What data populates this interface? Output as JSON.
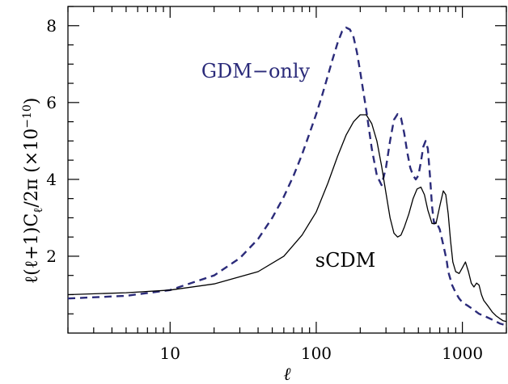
{
  "chart_data": {
    "type": "line",
    "xscale": "log",
    "xlim": [
      2,
      2000
    ],
    "ylim": [
      0,
      8.5
    ],
    "x_ticks": [
      10,
      100,
      1000
    ],
    "x_tick_labels": [
      "10",
      "100",
      "1000"
    ],
    "y_ticks": [
      2,
      4,
      6,
      8
    ],
    "y_tick_labels": [
      "2",
      "4",
      "6",
      "8"
    ],
    "xlabel": "ℓ",
    "ylabel": "ℓ(ℓ+1)C",
    "ylabel_sub": "ℓ",
    "ylabel_tail": "/2π  (×10",
    "ylabel_exp": "−10",
    "ylabel_close": ")",
    "grid": false,
    "series": [
      {
        "name": "GDM−only",
        "color": "#2b2b7a",
        "style": "dashed",
        "x": [
          2,
          5,
          10,
          20,
          30,
          40,
          50,
          60,
          70,
          80,
          90,
          100,
          110,
          120,
          130,
          140,
          150,
          160,
          170,
          180,
          190,
          200,
          220,
          240,
          260,
          280,
          300,
          320,
          340,
          360,
          380,
          400,
          420,
          440,
          460,
          480,
          500,
          520,
          540,
          560,
          580,
          600,
          620,
          640,
          660,
          700,
          750,
          780,
          800,
          850,
          900,
          950,
          1000,
          1050,
          1100,
          1150,
          1200,
          1300,
          1400,
          1500,
          1600,
          1700,
          1800,
          2000
        ],
        "y": [
          0.9,
          0.97,
          1.12,
          1.5,
          1.95,
          2.45,
          3.0,
          3.55,
          4.1,
          4.65,
          5.2,
          5.7,
          6.2,
          6.7,
          7.15,
          7.55,
          7.85,
          7.95,
          7.9,
          7.7,
          7.3,
          6.8,
          5.8,
          4.8,
          4.1,
          3.85,
          4.3,
          5.0,
          5.55,
          5.7,
          5.6,
          5.2,
          4.7,
          4.3,
          4.1,
          4.0,
          4.1,
          4.45,
          4.85,
          5.0,
          4.8,
          4.1,
          3.3,
          2.85,
          2.9,
          2.7,
          2.2,
          1.9,
          1.6,
          1.25,
          1.05,
          0.9,
          0.8,
          0.75,
          0.7,
          0.65,
          0.6,
          0.5,
          0.45,
          0.4,
          0.35,
          0.3,
          0.25,
          0.2
        ]
      },
      {
        "name": "sCDM",
        "color": "#000000",
        "style": "solid",
        "x": [
          2,
          5,
          10,
          20,
          40,
          60,
          80,
          100,
          120,
          140,
          160,
          180,
          200,
          220,
          240,
          260,
          280,
          300,
          320,
          340,
          360,
          380,
          400,
          430,
          460,
          490,
          520,
          550,
          580,
          620,
          660,
          700,
          740,
          770,
          800,
          830,
          860,
          900,
          950,
          1000,
          1050,
          1100,
          1150,
          1200,
          1250,
          1300,
          1350,
          1400,
          1500,
          1600,
          1700,
          1800,
          1900,
          2000
        ],
        "y": [
          1.0,
          1.05,
          1.12,
          1.28,
          1.6,
          2.0,
          2.55,
          3.15,
          3.9,
          4.6,
          5.15,
          5.5,
          5.68,
          5.68,
          5.45,
          5.0,
          4.35,
          3.65,
          3.0,
          2.6,
          2.5,
          2.55,
          2.75,
          3.1,
          3.5,
          3.75,
          3.8,
          3.6,
          3.2,
          2.85,
          2.85,
          3.3,
          3.7,
          3.6,
          3.1,
          2.4,
          1.85,
          1.6,
          1.55,
          1.7,
          1.85,
          1.6,
          1.3,
          1.2,
          1.3,
          1.25,
          1.0,
          0.85,
          0.7,
          0.55,
          0.45,
          0.38,
          0.32,
          0.3
        ]
      }
    ]
  }
}
